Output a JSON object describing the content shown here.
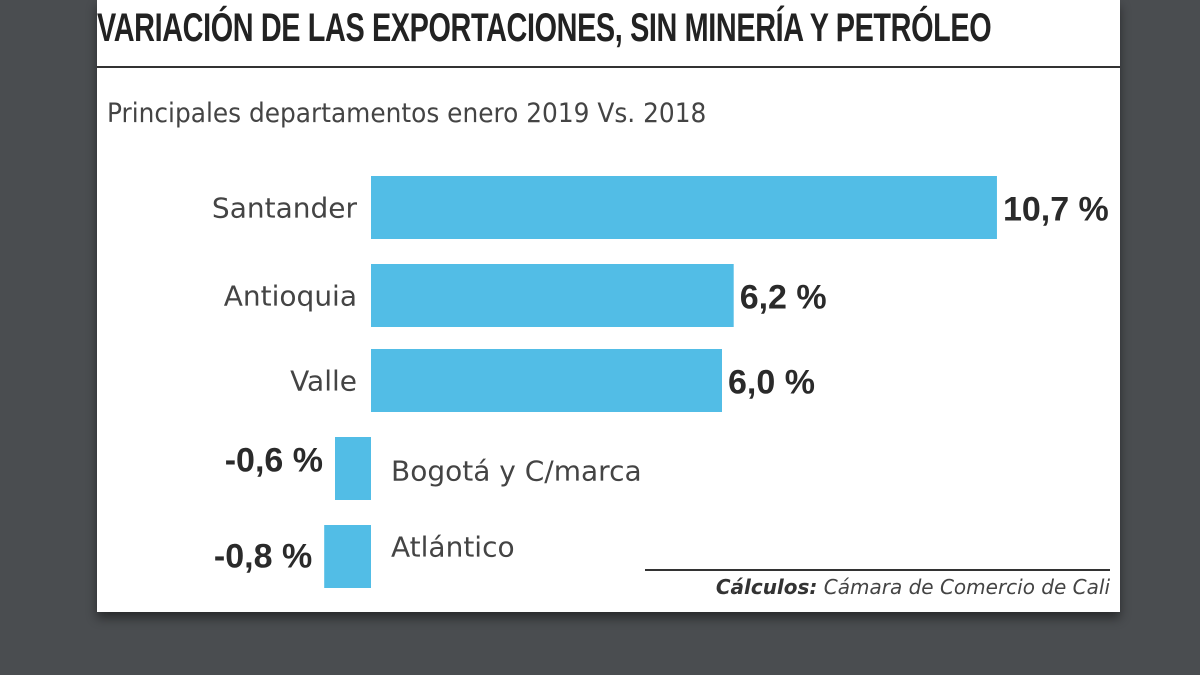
{
  "chart_data": {
    "type": "bar",
    "orientation": "horizontal",
    "title": "VARIACIÓN DE LAS EXPORTACIONES, SIN MINERÍA Y PETRÓLEO",
    "subtitle": "Principales departamentos enero 2019 Vs. 2018",
    "xlabel": "",
    "ylabel": "",
    "unit": "%",
    "categories": [
      "Santander",
      "Antioquia",
      "Valle",
      "Bogotá y C/marca",
      "Atlántico"
    ],
    "values": [
      10.7,
      6.2,
      6.0,
      -0.6,
      -0.8
    ],
    "value_labels": [
      "10,7 %",
      "6,2 %",
      "6,0 %",
      "-0,6 %",
      "-0,8 %"
    ],
    "bar_color": "#52bde6",
    "grid": false,
    "legend": "none"
  },
  "source": {
    "label": "Cálculos:",
    "text": "Cámara de Comercio de Cali"
  },
  "colors": {
    "background": "#4a4d50",
    "card": "#ffffff",
    "bar": "#52bde6",
    "text": "#444444"
  }
}
